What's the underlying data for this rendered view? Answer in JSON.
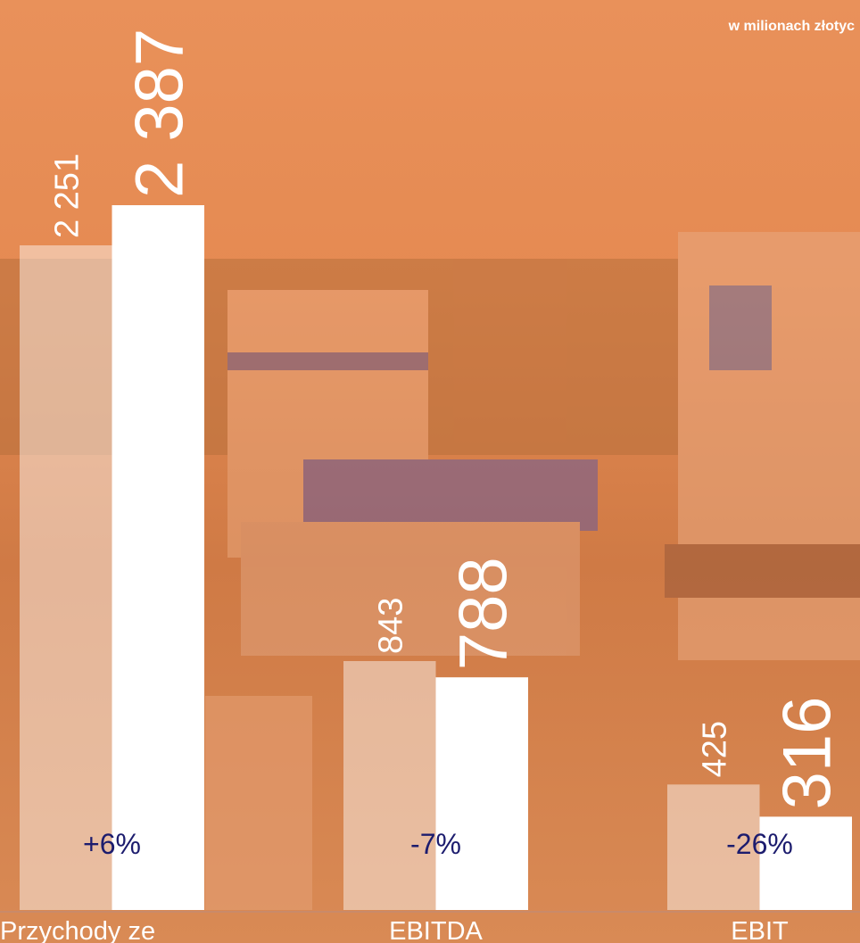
{
  "chart_data": {
    "type": "bar",
    "subtitle": "w milionach złotyc",
    "categories": [
      "Przychody ze",
      "EBITDA",
      "EBIT"
    ],
    "series": [
      {
        "color": "rgba(255,255,255,0.45)",
        "values": [
          2251,
          843,
          425
        ],
        "value_labels": [
          "2 251",
          "843",
          "425"
        ]
      },
      {
        "color": "#ffffff",
        "values": [
          2387,
          788,
          316
        ],
        "value_labels": [
          "2 387",
          "788",
          "316"
        ]
      }
    ],
    "annotations": [
      "+6%",
      "-7%",
      "-26%"
    ]
  }
}
